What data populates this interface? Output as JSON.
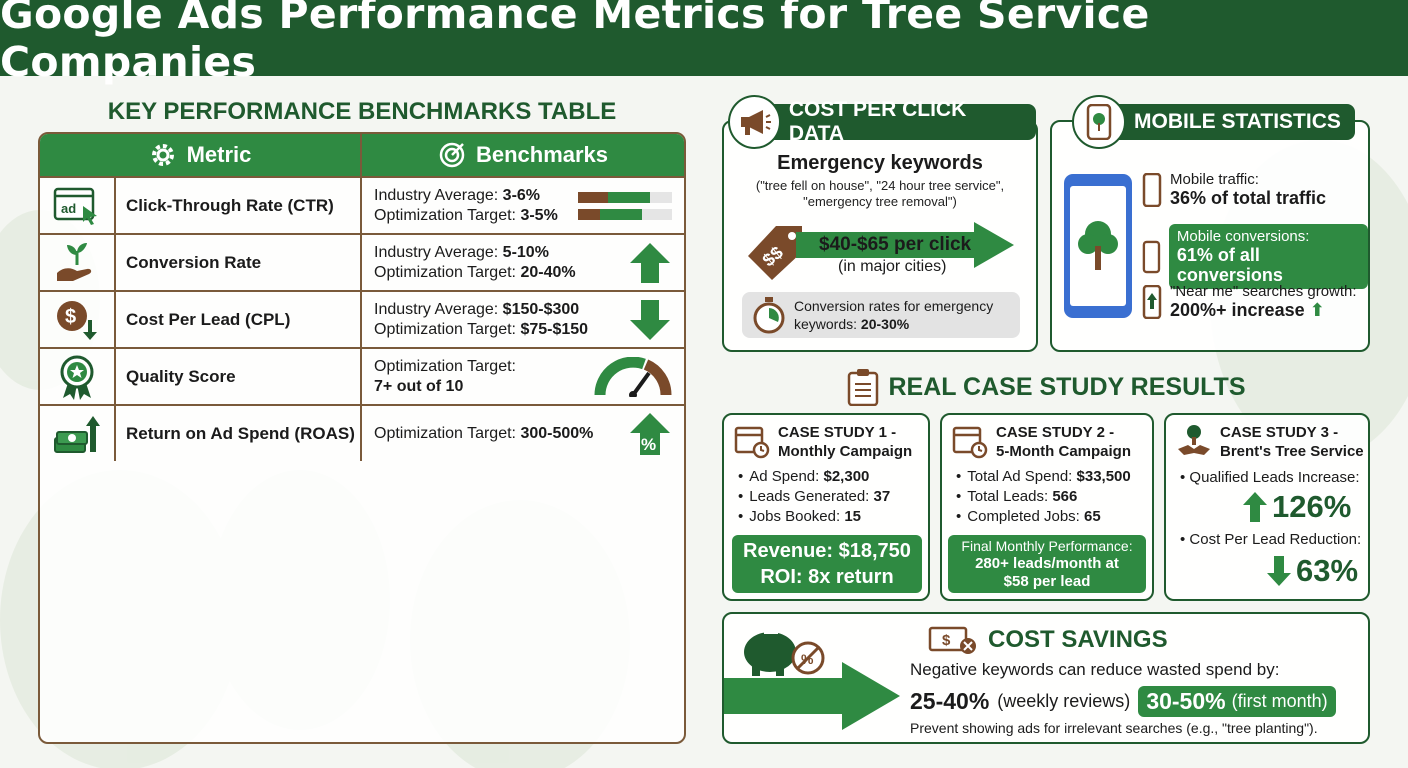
{
  "header": {
    "title": "Google Ads Performance Metrics for Tree Service Companies"
  },
  "benchmarks": {
    "title": "KEY PERFORMANCE BENCHMARKS TABLE",
    "col_metric": "Metric",
    "col_bench": "Benchmarks",
    "rows": [
      {
        "name": "Click-Through Rate (CTR)",
        "l1": "Industry Average: ",
        "v1": "3-6%",
        "l2": "Optimization Target: ",
        "v2": "3-5%",
        "icon": "ad-click-icon"
      },
      {
        "name": "Conversion Rate",
        "l1": "Industry Average: ",
        "v1": "5-10%",
        "l2": "Optimization Target: ",
        "v2": "20-40%",
        "icon": "plant-hand-icon"
      },
      {
        "name": "Cost Per Lead (CPL)",
        "l1": "Industry Average: ",
        "v1": "$150-$300",
        "l2": "Optimization Target: ",
        "v2": "$75-$150",
        "icon": "dollar-down-icon"
      },
      {
        "name": "Quality Score",
        "l1": "Optimization Target:",
        "v1": "",
        "l2": "",
        "v2": "7+ out of 10",
        "icon": "award-ribbon-icon"
      },
      {
        "name": "Return on Ad Spend (ROAS)",
        "l1": "Optimization Target: ",
        "v1": "300-500%",
        "l2": "",
        "v2": "",
        "icon": "money-growth-icon"
      }
    ],
    "percent_symbol": "%",
    "ad_text": "ad"
  },
  "cpc": {
    "title": "COST PER CLICK DATA",
    "kw_title": "Emergency keywords",
    "kw_line1": "(\"tree fell on house\", \"24 hour tree service\",",
    "kw_line2": "\"emergency tree removal\")",
    "price": "$40-$65 per click",
    "price_sub": "(in major cities)",
    "conv_line1": "Conversion rates for emergency",
    "conv_label": "keywords: ",
    "conv_value": "20-30%"
  },
  "mobile": {
    "title": "MOBILE STATISTICS",
    "r1_label": "Mobile traffic:",
    "r1_value": "36% of total traffic",
    "r2_label": "Mobile conversions:",
    "r2_value": "61% of all conversions",
    "r3_label": "\"Near me\" searches growth:",
    "r3_value": "200%+ increase"
  },
  "cases": {
    "title": "REAL CASE STUDY RESULTS",
    "c1": {
      "head1": "CASE STUDY 1 -",
      "head2": "Monthly Campaign",
      "items": [
        {
          "label": "Ad Spend: ",
          "value": "$2,300"
        },
        {
          "label": "Leads Generated: ",
          "value": "37"
        },
        {
          "label": "Jobs Booked: ",
          "value": "15"
        }
      ],
      "revenue": "Revenue: $18,750",
      "roi": "ROI: 8x return"
    },
    "c2": {
      "head1": "CASE STUDY 2 -",
      "head2": "5-Month Campaign",
      "items": [
        {
          "label": "Total Ad Spend: ",
          "value": "$33,500"
        },
        {
          "label": "Total Leads: ",
          "value": "566"
        },
        {
          "label": "Completed Jobs: ",
          "value": "65"
        }
      ],
      "final_label": "Final Monthly Performance:",
      "final_l1": "280+ leads/month at",
      "final_l2": "$58 per lead"
    },
    "c3": {
      "head1": "CASE STUDY 3 -",
      "head2": "Brent's Tree Service",
      "item1": "Qualified Leads Increase:",
      "value1": "126%",
      "item2": "Cost Per Lead Reduction:",
      "value2": "63%"
    }
  },
  "savings": {
    "title": "COST SAVINGS",
    "line1": "Negative keywords can reduce wasted spend by:",
    "v1": "25-40%",
    "l1": "(weekly reviews)",
    "v2": "30-50%",
    "l2": "(first month)",
    "line3": "Prevent showing ads for irrelevant searches (e.g., \"tree planting\")."
  },
  "colors": {
    "dark_green": "#1f5a2e",
    "green": "#2f8a42",
    "brown": "#7a4a2a"
  }
}
